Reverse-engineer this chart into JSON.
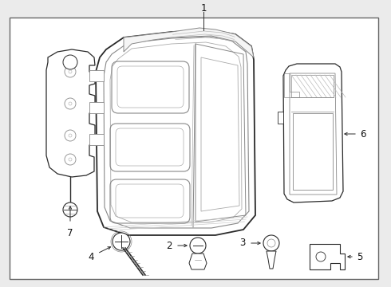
{
  "background_color": "#ebebeb",
  "border_color": "#555555",
  "line_color": "#2a2a2a",
  "light_line": "#888888",
  "lighter_line": "#aaaaaa",
  "label_color": "#111111",
  "fig_width": 4.9,
  "fig_height": 3.6,
  "dpi": 100
}
